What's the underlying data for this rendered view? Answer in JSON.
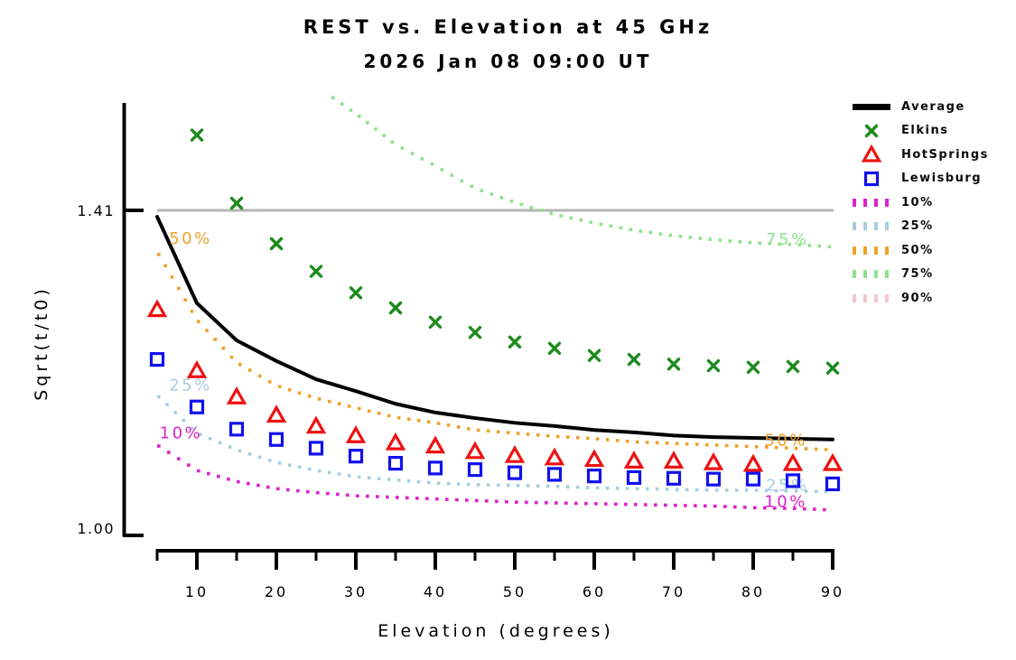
{
  "title": "REST vs. Elevation at 45 GHz",
  "subtitle": "2026 Jan 08 09:00 UT",
  "legend": {
    "items": [
      {
        "label": "Average",
        "marker": "line",
        "color": "#000000"
      },
      {
        "label": "Elkins",
        "marker": "x",
        "color": "#1d8b1d"
      },
      {
        "label": "HotSprings",
        "marker": "triangle",
        "color": "#ee1111"
      },
      {
        "label": "Lewisburg",
        "marker": "square",
        "color": "#1111ee"
      },
      {
        "label": "10%",
        "marker": "dotted",
        "color": "#dd22cc"
      },
      {
        "label": "25%",
        "marker": "dotted",
        "color": "#aacce0"
      },
      {
        "label": "50%",
        "marker": "dotted",
        "color": "#eea22a"
      },
      {
        "label": "75%",
        "marker": "dotted",
        "color": "#90e090"
      },
      {
        "label": "90%",
        "marker": "dotted",
        "color": "#f5c6d0"
      }
    ]
  },
  "chart_data": {
    "type": "line",
    "title": "REST vs. Elevation at 45 GHz",
    "subtitle": "2026 Jan 08 09:00 UT",
    "xlabel": "Elevation (degrees)",
    "ylabel": "Sqrt(t/t0)",
    "xlim": [
      5,
      90
    ],
    "ylim": [
      1.0,
      1.545
    ],
    "grid": false,
    "legend_position": "top-right",
    "x_axis": {
      "major_ticks": [
        10,
        20,
        30,
        40,
        50,
        60,
        70,
        80,
        90
      ],
      "major_tick_labels": [
        "10",
        "20",
        "30",
        "40",
        "50",
        "60",
        "70",
        "80",
        "90"
      ],
      "minor_ticks": [
        5,
        15,
        25,
        35,
        45,
        55,
        65,
        75,
        85
      ]
    },
    "y_axis": {
      "ticks": [
        {
          "label": "1.00",
          "value": 1.0
        },
        {
          "label": "1.41",
          "value": 1.41
        }
      ]
    },
    "reference_line": {
      "value": 1.41,
      "color": "#b5b5b5"
    },
    "series": [
      {
        "name": "Average",
        "style": "solid-line",
        "color": "#000000",
        "x": [
          5,
          10,
          15,
          20,
          25,
          30,
          35,
          40,
          45,
          50,
          55,
          60,
          65,
          70,
          75,
          80,
          85,
          90
        ],
        "values": [
          1.402,
          1.293,
          1.246,
          1.22,
          1.197,
          1.182,
          1.166,
          1.155,
          1.148,
          1.142,
          1.138,
          1.133,
          1.13,
          1.126,
          1.124,
          1.123,
          1.122,
          1.121
        ]
      },
      {
        "name": "Elkins",
        "style": "marker-x",
        "color": "#1d8b1d",
        "x": [
          10,
          15,
          20,
          25,
          30,
          35,
          40,
          45,
          50,
          55,
          60,
          65,
          70,
          75,
          80,
          85,
          90
        ],
        "values": [
          1.505,
          1.419,
          1.368,
          1.333,
          1.306,
          1.287,
          1.269,
          1.256,
          1.244,
          1.236,
          1.227,
          1.222,
          1.216,
          1.214,
          1.212,
          1.213,
          1.211
        ]
      },
      {
        "name": "HotSprings",
        "style": "marker-triangle",
        "color": "#ee1111",
        "x": [
          5,
          10,
          15,
          20,
          25,
          30,
          35,
          40,
          45,
          50,
          55,
          60,
          65,
          70,
          75,
          80,
          85,
          90
        ],
        "values": [
          1.284,
          1.207,
          1.174,
          1.151,
          1.137,
          1.125,
          1.116,
          1.112,
          1.105,
          1.1,
          1.097,
          1.095,
          1.093,
          1.093,
          1.091,
          1.089,
          1.09,
          1.09
        ]
      },
      {
        "name": "Lewisburg",
        "style": "marker-square",
        "color": "#1111ee",
        "x": [
          5,
          10,
          15,
          20,
          25,
          30,
          35,
          40,
          45,
          50,
          55,
          60,
          65,
          70,
          75,
          80,
          85,
          90
        ],
        "values": [
          1.222,
          1.162,
          1.134,
          1.121,
          1.11,
          1.1,
          1.091,
          1.085,
          1.083,
          1.079,
          1.077,
          1.075,
          1.073,
          1.072,
          1.071,
          1.071,
          1.069,
          1.065
        ]
      },
      {
        "name": "10%",
        "style": "dotted",
        "color": "#dd22cc",
        "x": [
          5,
          10,
          15,
          20,
          25,
          30,
          35,
          40,
          45,
          50,
          55,
          60,
          65,
          70,
          75,
          80,
          85,
          90
        ],
        "values": [
          1.114,
          1.082,
          1.068,
          1.059,
          1.054,
          1.05,
          1.048,
          1.046,
          1.044,
          1.042,
          1.041,
          1.04,
          1.039,
          1.038,
          1.037,
          1.035,
          1.034,
          1.032
        ]
      },
      {
        "name": "25%",
        "style": "dotted",
        "color": "#aacce0",
        "x": [
          5,
          10,
          15,
          20,
          25,
          30,
          35,
          40,
          45,
          50,
          55,
          60,
          65,
          70,
          75,
          80,
          85,
          90
        ],
        "values": [
          1.177,
          1.129,
          1.108,
          1.092,
          1.082,
          1.074,
          1.07,
          1.066,
          1.064,
          1.063,
          1.062,
          1.06,
          1.059,
          1.058,
          1.057,
          1.057,
          1.056,
          1.055
        ]
      },
      {
        "name": "50%",
        "style": "dotted",
        "color": "#eea22a",
        "x": [
          5,
          10,
          15,
          20,
          25,
          30,
          35,
          40,
          45,
          50,
          55,
          60,
          65,
          70,
          75,
          80,
          85,
          90
        ],
        "values": [
          1.358,
          1.272,
          1.218,
          1.189,
          1.173,
          1.161,
          1.149,
          1.142,
          1.133,
          1.129,
          1.125,
          1.122,
          1.118,
          1.116,
          1.114,
          1.112,
          1.11,
          1.108
        ]
      },
      {
        "name": "75%",
        "style": "dotted",
        "color": "#90e090",
        "x": [
          27,
          30,
          35,
          40,
          45,
          50,
          55,
          60,
          65,
          70,
          75,
          80,
          85,
          90
        ],
        "values": [
          1.553,
          1.532,
          1.493,
          1.466,
          1.438,
          1.42,
          1.405,
          1.394,
          1.385,
          1.378,
          1.373,
          1.369,
          1.367,
          1.364
        ]
      },
      {
        "name": "90%",
        "style": "dotted",
        "color": "#f5c6d0",
        "x": [],
        "values": [],
        "note": "above plotted y-range, legend entry only"
      }
    ],
    "annotations": [
      {
        "text": "50%",
        "color": "#eea22a",
        "x_deg": 6.5,
        "value": 1.375
      },
      {
        "text": "25%",
        "color": "#aacce0",
        "x_deg": 6.5,
        "value": 1.19
      },
      {
        "text": "10%",
        "color": "#dd22cc",
        "x_deg": 5.3,
        "value": 1.13
      },
      {
        "text": "75%",
        "color": "#90e090",
        "x_deg": 81.6,
        "value": 1.374
      },
      {
        "text": "50%",
        "color": "#eea22a",
        "x_deg": 81.4,
        "value": 1.121
      },
      {
        "text": "25%",
        "color": "#aacce0",
        "x_deg": 81.6,
        "value": 1.064
      },
      {
        "text": "10%",
        "color": "#dd22cc",
        "x_deg": 81.4,
        "value": 1.043
      }
    ]
  }
}
